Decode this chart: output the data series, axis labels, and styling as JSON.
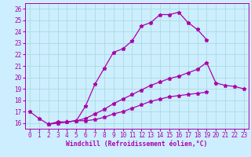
{
  "xlabel": "Windchill (Refroidissement éolien,°C)",
  "background_color": "#cceeff",
  "line_color": "#aa00aa",
  "xlim": [
    -0.5,
    23.5
  ],
  "ylim": [
    15.5,
    26.5
  ],
  "yticks": [
    16,
    17,
    18,
    19,
    20,
    21,
    22,
    23,
    24,
    25,
    26
  ],
  "xticks": [
    0,
    1,
    2,
    3,
    4,
    5,
    6,
    7,
    8,
    9,
    10,
    11,
    12,
    13,
    14,
    15,
    16,
    17,
    18,
    19,
    20,
    21,
    22,
    23
  ],
  "line1_x": [
    0,
    1,
    2,
    3,
    4,
    5,
    6,
    7,
    8,
    9,
    10,
    11,
    12,
    13,
    14,
    15,
    16,
    17,
    18,
    19
  ],
  "line1_y": [
    17.0,
    16.4,
    15.9,
    16.1,
    16.1,
    16.2,
    17.5,
    19.4,
    20.8,
    22.2,
    22.5,
    23.2,
    24.5,
    24.8,
    25.5,
    25.5,
    25.7,
    24.8,
    24.2,
    23.3
  ],
  "line2_x": [
    2,
    3,
    4,
    5,
    6,
    7,
    8,
    9,
    10,
    11,
    12,
    13,
    14,
    15,
    16,
    17,
    18,
    19,
    20,
    21,
    22,
    23
  ],
  "line2_y": [
    15.9,
    16.0,
    16.1,
    16.2,
    16.4,
    16.8,
    17.2,
    17.7,
    18.1,
    18.5,
    18.9,
    19.3,
    19.6,
    19.9,
    20.1,
    20.4,
    20.7,
    21.3,
    19.5,
    19.3,
    19.2,
    19.0
  ],
  "line3_x": [
    2,
    3,
    4,
    5,
    6,
    7,
    8,
    9,
    10,
    11,
    12,
    13,
    14,
    15,
    16,
    17,
    18,
    19
  ],
  "line3_y": [
    15.9,
    16.0,
    16.1,
    16.2,
    16.2,
    16.3,
    16.5,
    16.8,
    17.0,
    17.3,
    17.6,
    17.9,
    18.1,
    18.3,
    18.4,
    18.5,
    18.6,
    18.7
  ],
  "grid_color": "#aadddd",
  "xlabel_fontsize": 5.8,
  "tick_fontsize": 5.5,
  "linewidth": 0.9,
  "markersize": 3.5
}
